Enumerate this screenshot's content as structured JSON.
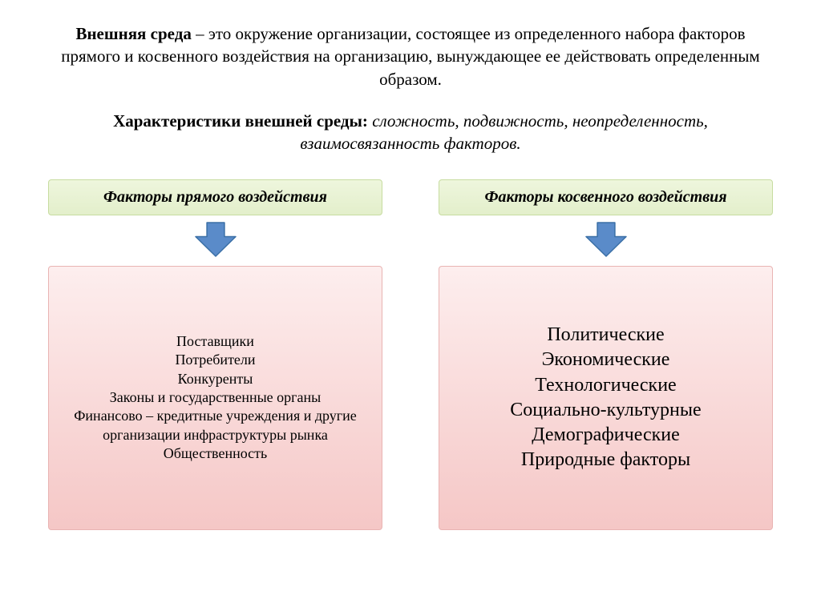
{
  "definition": {
    "term": "Внешняя среда",
    "text": " – это окружение организации, состоящее из определенного набора факторов прямого и косвенного воздействия на организацию, вынуждающее ее действовать определенным образом."
  },
  "characteristics": {
    "label": "Характеристики внешней среды: ",
    "values": "сложность, подвижность, неопределенность, взаимосвязанность факторов."
  },
  "columns": {
    "left": {
      "header": "Факторы прямого воздействия",
      "content": "Поставщики\nПотребители\nКонкуренты\nЗаконы и государственные органы\nФинансово – кредитные учреждения и другие организации инфраструктуры рынка\nОбщественность"
    },
    "right": {
      "header": "Факторы косвенного воздействия",
      "content": "Политические\nЭкономические\nТехнологические\nСоциально-культурные\nДемографические\nПриродные факторы"
    }
  },
  "styles": {
    "header_box": {
      "bg_top": "#eef6dd",
      "bg_bottom": "#e3efcb",
      "border": "#c7dca0",
      "text": "#000000"
    },
    "content_box": {
      "bg_top": "#fdeeee",
      "bg_bottom": "#f5c7c6",
      "border": "#e9b4b3",
      "text": "#000000"
    },
    "arrow": {
      "fill": "#5a8bc9",
      "stroke": "#3a6fa6",
      "width": 52,
      "height": 44
    }
  }
}
